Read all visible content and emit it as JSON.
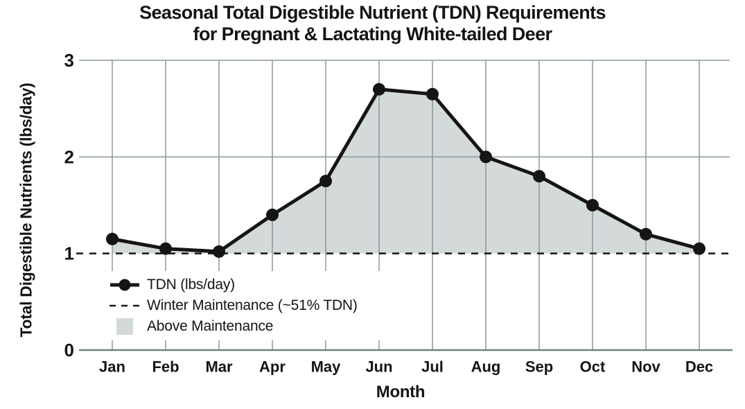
{
  "title": {
    "line1": "Seasonal Total Digestible Nutrient (TDN) Requirements",
    "line2": "for Pregnant & Lactating White-tailed Deer"
  },
  "chart_data": {
    "type": "line",
    "title": "Seasonal Total Digestible Nutrient (TDN) Requirements for Pregnant & Lactating White-tailed Deer",
    "xlabel": "Month",
    "ylabel": "Total Digestible Nutrients (lbs/day)",
    "categories": [
      "Jan",
      "Feb",
      "Mar",
      "Apr",
      "May",
      "Jun",
      "Jul",
      "Aug",
      "Sep",
      "Oct",
      "Nov",
      "Dec"
    ],
    "series": [
      {
        "name": "TDN (lbs/day)",
        "style": "solid-line-with-circle-markers",
        "values": [
          1.15,
          1.05,
          1.02,
          1.4,
          1.75,
          2.7,
          2.65,
          2.0,
          1.8,
          1.5,
          1.2,
          1.05
        ]
      },
      {
        "name": "Winter Maintenance (~51% TDN)",
        "style": "horizontal-dashed-line",
        "value": 1.0
      }
    ],
    "area": {
      "name": "Above Maintenance",
      "between": [
        "TDN (lbs/day)",
        "Winter Maintenance (~51% TDN)"
      ]
    },
    "ylim": [
      0,
      3
    ],
    "yticks": [
      0,
      1,
      2,
      3
    ],
    "solid_grid_yticks": [
      2,
      3
    ],
    "grid": true,
    "legend_position": "inside lower left"
  },
  "colors": {
    "line": "#151515",
    "marker": "#151515",
    "maintenance_line": "#151515",
    "area_fill": "#d4d9d9",
    "gridline": "#8a9898",
    "axis": "#6f8080",
    "text": "#141414",
    "background": "#ffffff"
  }
}
